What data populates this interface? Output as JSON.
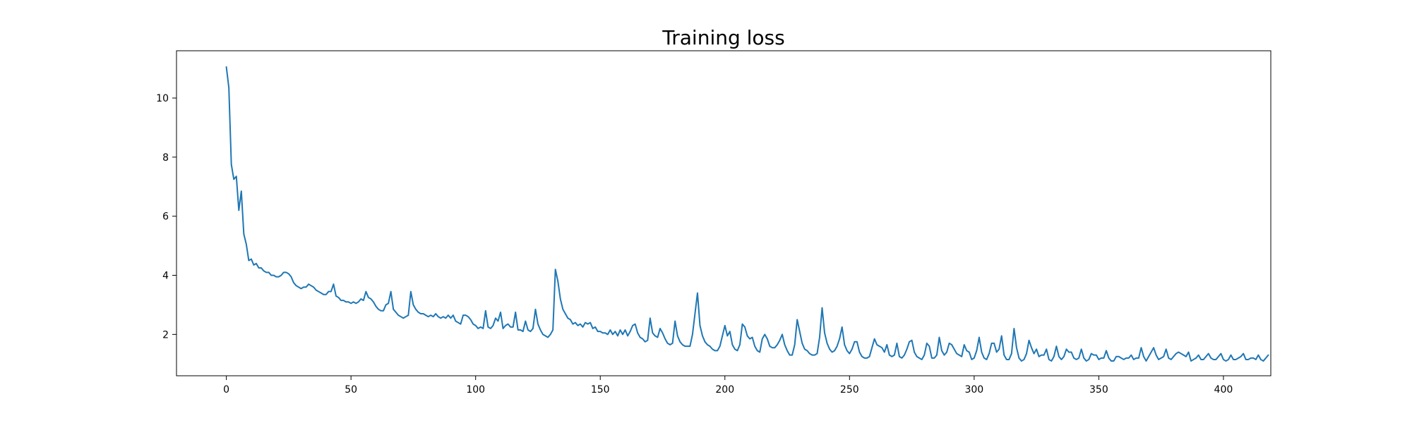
{
  "chart_data": {
    "type": "line",
    "title": "Training loss",
    "xlabel": "",
    "ylabel": "",
    "xlim": [
      -20,
      419
    ],
    "ylim": [
      0.6,
      11.6
    ],
    "xticks": [
      0,
      50,
      100,
      150,
      200,
      250,
      300,
      350,
      400
    ],
    "yticks": [
      2,
      4,
      6,
      8,
      10
    ],
    "grid": false,
    "colors": {
      "line": "#1f77b4",
      "axes": "#000000",
      "background": "#ffffff"
    },
    "series": [
      {
        "x_start": 0,
        "x_step": 1,
        "values": [
          11.05,
          10.35,
          7.75,
          7.25,
          7.35,
          6.2,
          6.85,
          5.4,
          5.05,
          4.5,
          4.55,
          4.35,
          4.4,
          4.25,
          4.25,
          4.15,
          4.1,
          4.1,
          4.0,
          4.0,
          3.95,
          3.95,
          4.0,
          4.1,
          4.1,
          4.05,
          3.95,
          3.75,
          3.65,
          3.6,
          3.55,
          3.6,
          3.6,
          3.7,
          3.65,
          3.6,
          3.5,
          3.45,
          3.4,
          3.35,
          3.35,
          3.45,
          3.45,
          3.7,
          3.3,
          3.25,
          3.15,
          3.15,
          3.1,
          3.1,
          3.05,
          3.1,
          3.05,
          3.1,
          3.2,
          3.15,
          3.45,
          3.25,
          3.2,
          3.1,
          2.95,
          2.85,
          2.8,
          2.8,
          3.0,
          3.05,
          3.45,
          2.85,
          2.75,
          2.65,
          2.6,
          2.55,
          2.6,
          2.65,
          3.45,
          3.0,
          2.85,
          2.75,
          2.7,
          2.7,
          2.65,
          2.6,
          2.65,
          2.6,
          2.7,
          2.6,
          2.55,
          2.6,
          2.55,
          2.65,
          2.55,
          2.65,
          2.45,
          2.4,
          2.35,
          2.65,
          2.65,
          2.6,
          2.5,
          2.35,
          2.3,
          2.2,
          2.25,
          2.2,
          2.8,
          2.25,
          2.2,
          2.3,
          2.55,
          2.45,
          2.75,
          2.2,
          2.3,
          2.35,
          2.25,
          2.25,
          2.75,
          2.15,
          2.15,
          2.1,
          2.45,
          2.15,
          2.1,
          2.2,
          2.85,
          2.35,
          2.15,
          2.0,
          1.95,
          1.9,
          2.0,
          2.15,
          4.2,
          3.8,
          3.2,
          2.85,
          2.7,
          2.55,
          2.5,
          2.35,
          2.4,
          2.3,
          2.35,
          2.25,
          2.4,
          2.35,
          2.4,
          2.2,
          2.25,
          2.1,
          2.1,
          2.05,
          2.05,
          2.0,
          2.15,
          2.0,
          2.1,
          1.95,
          2.15,
          2.0,
          2.15,
          1.95,
          2.1,
          2.3,
          2.35,
          2.05,
          1.9,
          1.85,
          1.75,
          1.8,
          2.55,
          2.05,
          1.95,
          1.9,
          2.2,
          2.05,
          1.85,
          1.7,
          1.65,
          1.7,
          2.45,
          1.95,
          1.75,
          1.65,
          1.6,
          1.6,
          1.6,
          2.0,
          2.7,
          3.4,
          2.3,
          1.95,
          1.75,
          1.65,
          1.6,
          1.5,
          1.45,
          1.45,
          1.6,
          1.95,
          2.3,
          1.95,
          2.1,
          1.65,
          1.5,
          1.45,
          1.65,
          2.35,
          2.25,
          1.95,
          1.85,
          1.9,
          1.6,
          1.45,
          1.4,
          1.85,
          2.0,
          1.85,
          1.6,
          1.55,
          1.55,
          1.65,
          1.8,
          2.0,
          1.65,
          1.45,
          1.3,
          1.3,
          1.65,
          2.5,
          2.1,
          1.7,
          1.5,
          1.45,
          1.35,
          1.3,
          1.3,
          1.35,
          1.9,
          2.9,
          2.05,
          1.7,
          1.5,
          1.4,
          1.45,
          1.6,
          1.85,
          2.25,
          1.65,
          1.45,
          1.35,
          1.5,
          1.75,
          1.75,
          1.4,
          1.25,
          1.2,
          1.2,
          1.25,
          1.55,
          1.85,
          1.65,
          1.6,
          1.55,
          1.4,
          1.65,
          1.3,
          1.25,
          1.3,
          1.7,
          1.25,
          1.2,
          1.3,
          1.5,
          1.75,
          1.8,
          1.4,
          1.25,
          1.2,
          1.15,
          1.3,
          1.7,
          1.6,
          1.2,
          1.2,
          1.3,
          1.9,
          1.45,
          1.3,
          1.4,
          1.7,
          1.65,
          1.5,
          1.35,
          1.3,
          1.25,
          1.65,
          1.45,
          1.4,
          1.15,
          1.2,
          1.45,
          1.9,
          1.4,
          1.2,
          1.15,
          1.35,
          1.7,
          1.7,
          1.4,
          1.5,
          1.95,
          1.3,
          1.15,
          1.15,
          1.35,
          2.2,
          1.55,
          1.2,
          1.1,
          1.15,
          1.35,
          1.8,
          1.55,
          1.35,
          1.5,
          1.25,
          1.3,
          1.3,
          1.5,
          1.15,
          1.1,
          1.25,
          1.6,
          1.25,
          1.15,
          1.25,
          1.5,
          1.4,
          1.4,
          1.2,
          1.15,
          1.2,
          1.5,
          1.2,
          1.1,
          1.15,
          1.35,
          1.3,
          1.3,
          1.15,
          1.2,
          1.2,
          1.45,
          1.2,
          1.1,
          1.1,
          1.25,
          1.25,
          1.2,
          1.15,
          1.2,
          1.2,
          1.3,
          1.15,
          1.2,
          1.2,
          1.55,
          1.25,
          1.1,
          1.25,
          1.4,
          1.55,
          1.3,
          1.15,
          1.2,
          1.25,
          1.5,
          1.2,
          1.15,
          1.25,
          1.35,
          1.4,
          1.35,
          1.3,
          1.25,
          1.4,
          1.1,
          1.15,
          1.2,
          1.3,
          1.15,
          1.15,
          1.25,
          1.35,
          1.2,
          1.15,
          1.15,
          1.25,
          1.35,
          1.15,
          1.1,
          1.15,
          1.3,
          1.15,
          1.15,
          1.2,
          1.25,
          1.35,
          1.15,
          1.15,
          1.2,
          1.2,
          1.15,
          1.3,
          1.15,
          1.1,
          1.2,
          1.3
        ]
      }
    ]
  }
}
